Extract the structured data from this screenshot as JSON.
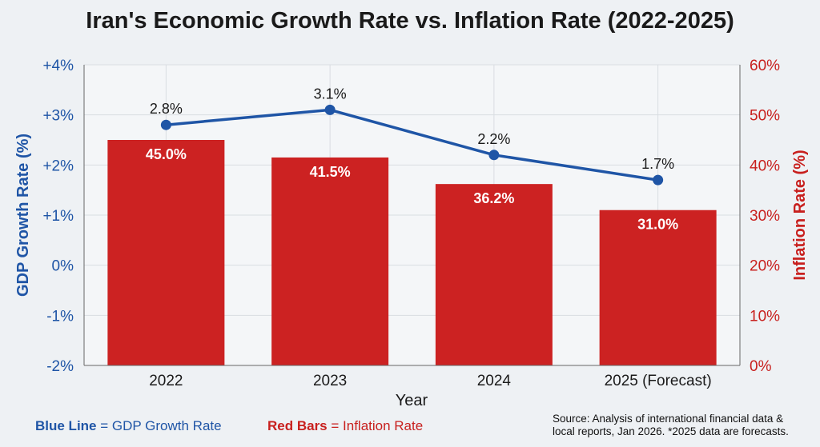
{
  "chart_data": {
    "type": "bar+line",
    "title": "Iran's Economic Growth Rate vs. Inflation Rate (2022-2025)",
    "xlabel": "Year",
    "ylabel_left": "GDP Growth Rate (%)",
    "ylabel_right": "Inflation Rate (%)",
    "categories": [
      "2022",
      "2023",
      "2024",
      "2025 (Forecast)"
    ],
    "left_axis": {
      "ylim": [
        -2,
        4
      ],
      "ticks": [
        4,
        3,
        2,
        1,
        0,
        -1,
        -2
      ],
      "tick_labels": [
        "+4%",
        "+3%",
        "+2%",
        "+1%",
        "0%",
        "-1%",
        "-2%"
      ]
    },
    "right_axis": {
      "ylim": [
        0,
        60
      ],
      "ticks": [
        60,
        50,
        40,
        30,
        20,
        10,
        0
      ],
      "tick_labels": [
        "60%",
        "50%",
        "40%",
        "30%",
        "20%",
        "10%",
        "0%"
      ]
    },
    "grid": true,
    "series": [
      {
        "axis": "right",
        "type": "bar",
        "values": [
          45.0,
          41.5,
          36.2,
          31.0
        ],
        "labels": [
          "45.0%",
          "41.5%",
          "36.2%",
          "31.0%"
        ],
        "color": "#cc2222"
      },
      {
        "axis": "left",
        "type": "line",
        "values": [
          2.8,
          3.1,
          2.2,
          1.7
        ],
        "labels": [
          "2.8%",
          "3.1%",
          "2.2%",
          "1.7%"
        ],
        "color": "#1f55a6"
      }
    ],
    "colors": {
      "left_axis": "#1f55a6",
      "right_axis": "#c8201e",
      "grid": "#d9dde2"
    }
  },
  "legend": {
    "blue_key": "Blue Line",
    "blue_rest": " = GDP Growth Rate",
    "red_key": "Red Bars",
    "red_rest": " = Inflation Rate"
  },
  "source": {
    "line1": "Source: Analysis of international financial data &",
    "line2": "local reports, Jan 2026. *2025 data are forecasts."
  }
}
